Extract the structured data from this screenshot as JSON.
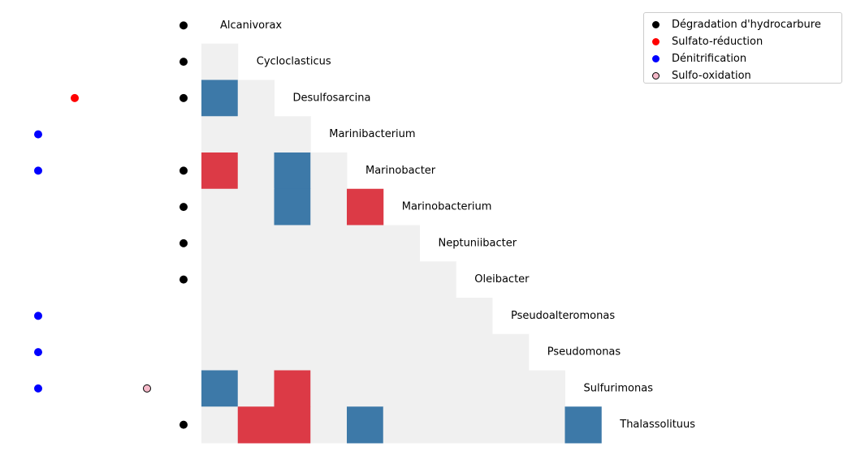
{
  "chart_data": {
    "type": "heatmap",
    "title": "",
    "xlabel": "",
    "ylabel": "",
    "genera": [
      "Alcanivorax",
      "Cycloclasticus",
      "Desulfosarcina",
      "Marinibacterium",
      "Marinobacter",
      "Marinobacterium",
      "Neptuniibacter",
      "Oleibacter",
      "Pseudoalteromonas",
      "Pseudomonas",
      "Sulfurimonas",
      "Thalassolituus"
    ],
    "color_scale": {
      "positive": "#dc3a46",
      "negative": "#3d79a8",
      "neutral": "#f0f0f0"
    },
    "matrix": [
      [],
      [
        0
      ],
      [
        -1,
        0
      ],
      [
        0,
        0,
        0
      ],
      [
        1,
        0,
        -1,
        0
      ],
      [
        0,
        0,
        -1,
        0,
        1
      ],
      [
        0,
        0,
        0,
        0,
        0,
        0
      ],
      [
        0,
        0,
        0,
        0,
        0,
        0,
        0
      ],
      [
        0,
        0,
        0,
        0,
        0,
        0,
        0,
        0
      ],
      [
        0,
        0,
        0,
        0,
        0,
        0,
        0,
        0,
        0
      ],
      [
        -1,
        0,
        1,
        0,
        0,
        0,
        0,
        0,
        0,
        0
      ],
      [
        0,
        1,
        1,
        0,
        -1,
        0,
        0,
        0,
        0,
        0,
        -1
      ]
    ],
    "functions": [
      {
        "name": "Dégradation d'hydrocarbure",
        "color": "#000000",
        "edge": "#000000",
        "genera": [
          "Alcanivorax",
          "Cycloclasticus",
          "Desulfosarcina",
          "Marinobacter",
          "Marinobacterium",
          "Neptuniibacter",
          "Oleibacter",
          "Thalassolituus"
        ]
      },
      {
        "name": "Sulfato-réduction",
        "color": "#ff0000",
        "edge": "#ff0000",
        "genera": [
          "Desulfosarcina"
        ]
      },
      {
        "name": "Dénitrification",
        "color": "#0000ff",
        "edge": "#0000ff",
        "genera": [
          "Marinibacterium",
          "Marinobacter",
          "Pseudoalteromonas",
          "Pseudomonas",
          "Sulfurimonas"
        ]
      },
      {
        "name": "Sulfo-oxidation",
        "color": "#f4b8c8",
        "edge": "#000000",
        "genera": [
          "Sulfurimonas"
        ]
      }
    ],
    "legend_position": "top-right",
    "grid": false
  }
}
